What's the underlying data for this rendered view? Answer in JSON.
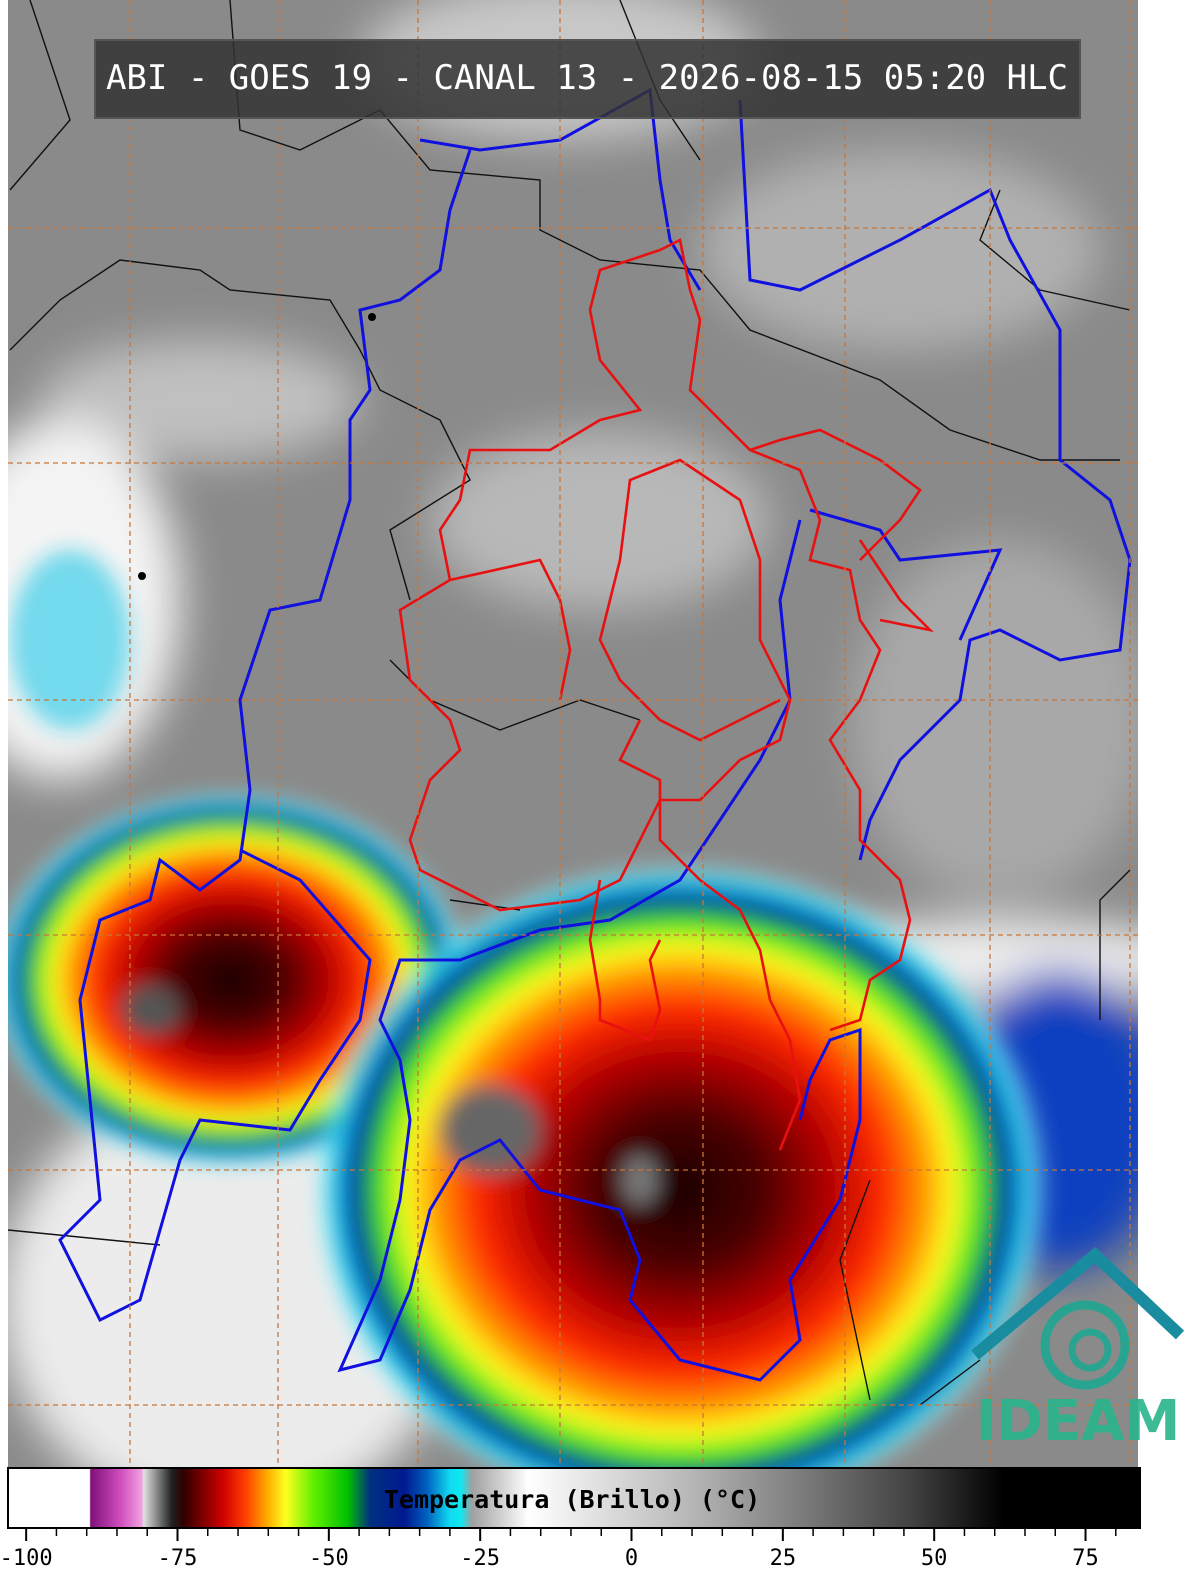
{
  "header": {
    "title": "ABI - GOES 19 - CANAL 13 - 2026-08-15 05:20 HLC"
  },
  "colorbar": {
    "label": "Temperatura (Brillo) (°C)",
    "range": [
      -103,
      84
    ],
    "ticks": [
      -100,
      -75,
      -50,
      -25,
      0,
      25,
      50,
      75
    ],
    "minor_ticks": [
      -95,
      -90,
      -85,
      -80,
      -70,
      -65,
      -60,
      -55,
      -45,
      -40,
      -35,
      -30,
      -20,
      -15,
      -10,
      -5,
      5,
      10,
      15,
      20,
      30,
      35,
      40,
      45,
      55,
      60,
      65,
      70,
      80
    ]
  },
  "logo": {
    "text": "IDEAM"
  }
}
